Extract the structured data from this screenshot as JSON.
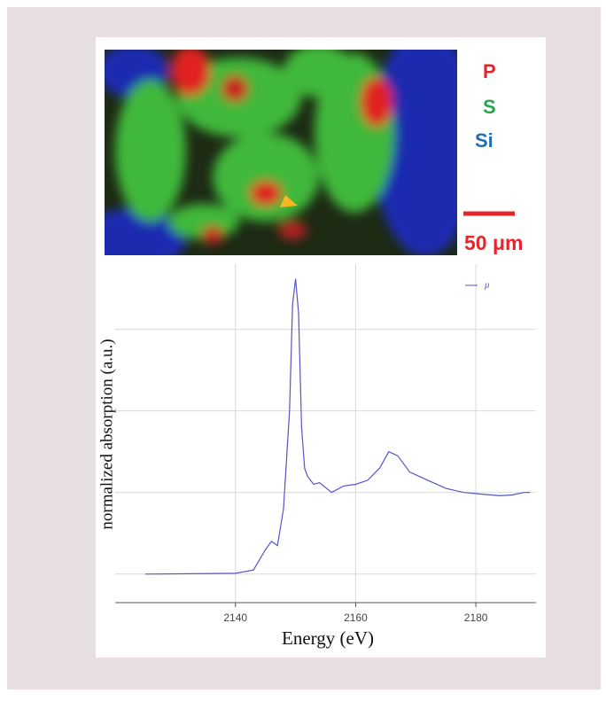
{
  "map": {
    "labels": [
      {
        "text": "P",
        "color": "#e8242a"
      },
      {
        "text": "S",
        "color": "#22a84a"
      },
      {
        "text": "Si",
        "color": "#1f6db5"
      }
    ],
    "scale_bar": "50 μm"
  },
  "chart_data": {
    "type": "line",
    "xlabel": "Energy (eV)",
    "ylabel": "normalized absorption (a.u.)",
    "xlim": [
      2120,
      2190
    ],
    "xticks": [
      2140,
      2160,
      2180
    ],
    "ylim": [
      -0.35,
      3.8
    ],
    "yticks": [
      0,
      1,
      2,
      3
    ],
    "grid": true,
    "legend": "upper right",
    "x": [
      2125,
      2140,
      2143,
      2145,
      2146,
      2147,
      2148,
      2149,
      2149.5,
      2150,
      2150.5,
      2151,
      2151.5,
      2152,
      2153,
      2154,
      2156,
      2158,
      2160,
      2162,
      2164,
      2165.5,
      2167,
      2169,
      2172,
      2175,
      2178,
      2181,
      2184,
      2186,
      2188,
      2189
    ],
    "series": [
      {
        "name": "μ",
        "color": "#5555c8",
        "values": [
          0,
          0.01,
          0.05,
          0.3,
          0.4,
          0.35,
          0.8,
          2.0,
          3.3,
          3.62,
          3.2,
          1.8,
          1.3,
          1.2,
          1.1,
          1.12,
          1.0,
          1.08,
          1.1,
          1.15,
          1.3,
          1.5,
          1.45,
          1.25,
          1.15,
          1.05,
          1.0,
          0.98,
          0.96,
          0.97,
          1.0,
          1.0
        ]
      }
    ]
  }
}
